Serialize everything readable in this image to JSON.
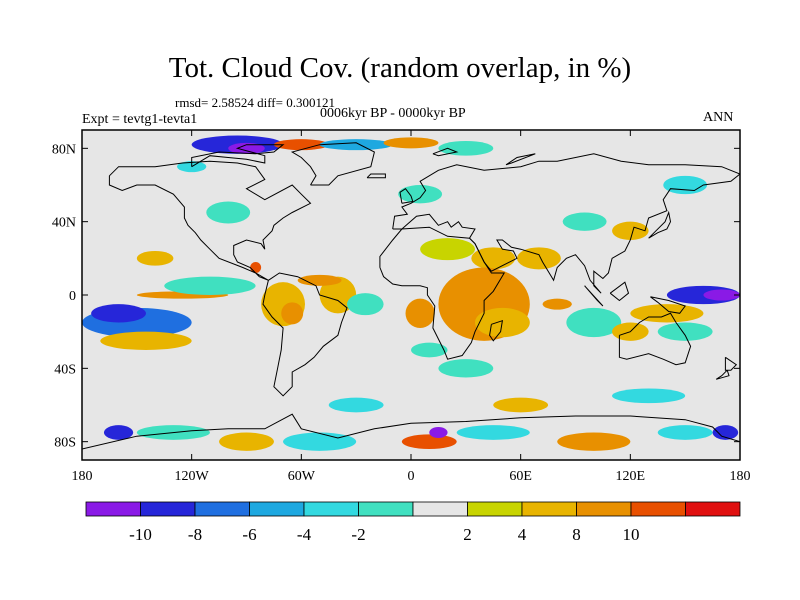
{
  "title": "Tot. Cloud Cov. (random overlap, in %)",
  "stats": {
    "rmsd_label": "rmsd= 2.58524 diff= 0.300121"
  },
  "experiment": "Expt = tevtg1-tevta1",
  "period": "0006kyr BP - 0000kyr BP",
  "season": "ANN",
  "map": {
    "projection": "cylindrical equidistant",
    "lon_range": [
      -180,
      180
    ],
    "lat_range": [
      -90,
      90
    ],
    "lon_ticks": [
      {
        "lon": -180,
        "label": "180"
      },
      {
        "lon": -120,
        "label": "120W"
      },
      {
        "lon": -60,
        "label": "60W"
      },
      {
        "lon": 0,
        "label": "0"
      },
      {
        "lon": 60,
        "label": "60E"
      },
      {
        "lon": 120,
        "label": "120E"
      },
      {
        "lon": 180,
        "label": "180"
      }
    ],
    "lat_ticks": [
      {
        "lat": 80,
        "label": "80N"
      },
      {
        "lat": 40,
        "label": "40N"
      },
      {
        "lat": 0,
        "label": "0"
      },
      {
        "lat": -40,
        "label": "40S"
      },
      {
        "lat": -80,
        "label": "80S"
      }
    ],
    "background_color": "#e6e6e6"
  },
  "colorbar": {
    "colors": [
      "#8a1ae6",
      "#2626d9",
      "#1f6fe0",
      "#1ea8e0",
      "#33d9e0",
      "#40e0c0",
      "#e6e6e6",
      "#c8d400",
      "#e8b400",
      "#e89000",
      "#e85000",
      "#e01010"
    ],
    "labels": [
      {
        "boundary": 1,
        "label": "-10"
      },
      {
        "boundary": 2,
        "label": "-8"
      },
      {
        "boundary": 3,
        "label": "-6"
      },
      {
        "boundary": 4,
        "label": "-4"
      },
      {
        "boundary": 5,
        "label": "-2"
      },
      {
        "boundary": 7,
        "label": "2"
      },
      {
        "boundary": 8,
        "label": "4"
      },
      {
        "boundary": 9,
        "label": "8"
      },
      {
        "boundary": 10,
        "label": "10"
      }
    ]
  },
  "anomalies": [
    {
      "lon": -150,
      "lat": -15,
      "level": 2,
      "rx": 30,
      "ry": 8
    },
    {
      "lon": -160,
      "lat": -10,
      "level": 1,
      "rx": 15,
      "ry": 5
    },
    {
      "lon": -145,
      "lat": -25,
      "level": 8,
      "rx": 25,
      "ry": 5
    },
    {
      "lon": -125,
      "lat": 0,
      "level": 9,
      "rx": 25,
      "ry": 2
    },
    {
      "lon": -110,
      "lat": 5,
      "level": 5,
      "rx": 25,
      "ry": 5
    },
    {
      "lon": -70,
      "lat": -5,
      "level": 8,
      "rx": 12,
      "ry": 12
    },
    {
      "lon": -65,
      "lat": -10,
      "level": 9,
      "rx": 6,
      "ry": 6
    },
    {
      "lon": -40,
      "lat": 0,
      "level": 8,
      "rx": 10,
      "ry": 10
    },
    {
      "lon": -25,
      "lat": -5,
      "level": 5,
      "rx": 10,
      "ry": 6
    },
    {
      "lon": -85,
      "lat": 15,
      "level": 10,
      "rx": 3,
      "ry": 3
    },
    {
      "lon": -50,
      "lat": 8,
      "level": 9,
      "rx": 12,
      "ry": 3
    },
    {
      "lon": -100,
      "lat": 45,
      "level": 5,
      "rx": 12,
      "ry": 6
    },
    {
      "lon": -140,
      "lat": 20,
      "level": 8,
      "rx": 10,
      "ry": 4
    },
    {
      "lon": -120,
      "lat": 70,
      "level": 4,
      "rx": 8,
      "ry": 3
    },
    {
      "lon": -95,
      "lat": 82,
      "level": 1,
      "rx": 25,
      "ry": 5
    },
    {
      "lon": -90,
      "lat": 80,
      "level": 0,
      "rx": 10,
      "ry": 3
    },
    {
      "lon": -60,
      "lat": 82,
      "level": 10,
      "rx": 15,
      "ry": 3
    },
    {
      "lon": -30,
      "lat": 82,
      "level": 3,
      "rx": 20,
      "ry": 3
    },
    {
      "lon": 0,
      "lat": 83,
      "level": 9,
      "rx": 15,
      "ry": 3
    },
    {
      "lon": 30,
      "lat": 80,
      "level": 5,
      "rx": 15,
      "ry": 4
    },
    {
      "lon": 5,
      "lat": 55,
      "level": 5,
      "rx": 12,
      "ry": 5
    },
    {
      "lon": 20,
      "lat": 25,
      "level": 7,
      "rx": 15,
      "ry": 6
    },
    {
      "lon": 45,
      "lat": 20,
      "level": 8,
      "rx": 12,
      "ry": 6
    },
    {
      "lon": 40,
      "lat": -5,
      "level": 9,
      "rx": 25,
      "ry": 20
    },
    {
      "lon": 50,
      "lat": -15,
      "level": 8,
      "rx": 15,
      "ry": 8
    },
    {
      "lon": 5,
      "lat": -10,
      "level": 9,
      "rx": 8,
      "ry": 8
    },
    {
      "lon": 10,
      "lat": -30,
      "level": 5,
      "rx": 10,
      "ry": 4
    },
    {
      "lon": 30,
      "lat": -40,
      "level": 5,
      "rx": 15,
      "ry": 5
    },
    {
      "lon": 70,
      "lat": 20,
      "level": 8,
      "rx": 12,
      "ry": 6
    },
    {
      "lon": 95,
      "lat": 40,
      "level": 5,
      "rx": 12,
      "ry": 5
    },
    {
      "lon": 120,
      "lat": 35,
      "level": 8,
      "rx": 10,
      "ry": 5
    },
    {
      "lon": 150,
      "lat": 60,
      "level": 4,
      "rx": 12,
      "ry": 5
    },
    {
      "lon": 160,
      "lat": 0,
      "level": 1,
      "rx": 20,
      "ry": 5
    },
    {
      "lon": 170,
      "lat": 0,
      "level": 0,
      "rx": 10,
      "ry": 3
    },
    {
      "lon": 140,
      "lat": -10,
      "level": 8,
      "rx": 20,
      "ry": 5
    },
    {
      "lon": 100,
      "lat": -15,
      "level": 5,
      "rx": 15,
      "ry": 8
    },
    {
      "lon": 120,
      "lat": -20,
      "level": 8,
      "rx": 10,
      "ry": 5
    },
    {
      "lon": 150,
      "lat": -20,
      "level": 5,
      "rx": 15,
      "ry": 5
    },
    {
      "lon": 80,
      "lat": -5,
      "level": 9,
      "rx": 8,
      "ry": 3
    },
    {
      "lon": -160,
      "lat": -75,
      "level": 1,
      "rx": 8,
      "ry": 4
    },
    {
      "lon": -130,
      "lat": -75,
      "level": 5,
      "rx": 20,
      "ry": 4
    },
    {
      "lon": -90,
      "lat": -80,
      "level": 8,
      "rx": 15,
      "ry": 5
    },
    {
      "lon": -50,
      "lat": -80,
      "level": 4,
      "rx": 20,
      "ry": 5
    },
    {
      "lon": 10,
      "lat": -80,
      "level": 10,
      "rx": 15,
      "ry": 4
    },
    {
      "lon": 15,
      "lat": -75,
      "level": 0,
      "rx": 5,
      "ry": 3
    },
    {
      "lon": 45,
      "lat": -75,
      "level": 4,
      "rx": 20,
      "ry": 4
    },
    {
      "lon": 100,
      "lat": -80,
      "level": 9,
      "rx": 20,
      "ry": 5
    },
    {
      "lon": 150,
      "lat": -75,
      "level": 4,
      "rx": 15,
      "ry": 4
    },
    {
      "lon": 172,
      "lat": -75,
      "level": 1,
      "rx": 7,
      "ry": 4
    },
    {
      "lon": -30,
      "lat": -60,
      "level": 4,
      "rx": 15,
      "ry": 4
    },
    {
      "lon": 60,
      "lat": -60,
      "level": 8,
      "rx": 15,
      "ry": 4
    },
    {
      "lon": 130,
      "lat": -55,
      "level": 4,
      "rx": 20,
      "ry": 4
    }
  ]
}
